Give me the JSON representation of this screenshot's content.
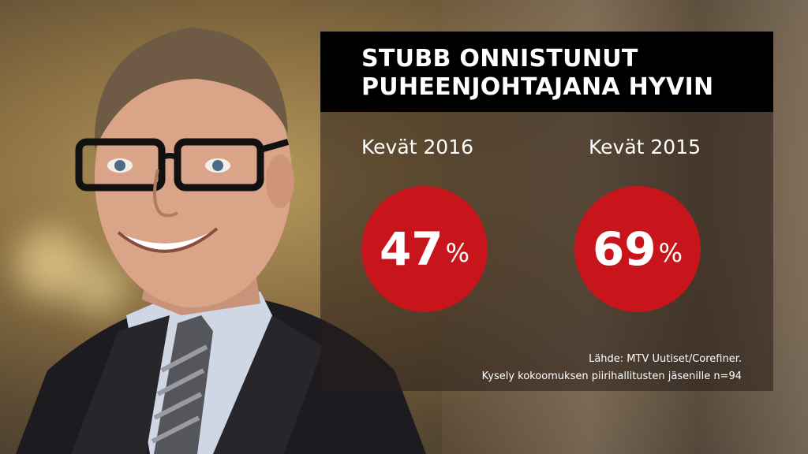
{
  "headline": {
    "line1": "STUBB ONNISTUNUT",
    "line2": "PUHEENJOHTAJANA HYVIN"
  },
  "stats": [
    {
      "period": "Kevät 2016",
      "value": "47",
      "unit": "%"
    },
    {
      "period": "Kevät 2015",
      "value": "69",
      "unit": "%"
    }
  ],
  "source": {
    "line1": "Lähde:  MTV Uutiset/Corefiner.",
    "line2": "Kysely kokoomuksen piirihallitusten jäsenille n=94"
  },
  "colors": {
    "accent": "#c8151c",
    "title_bg": "#000000"
  }
}
